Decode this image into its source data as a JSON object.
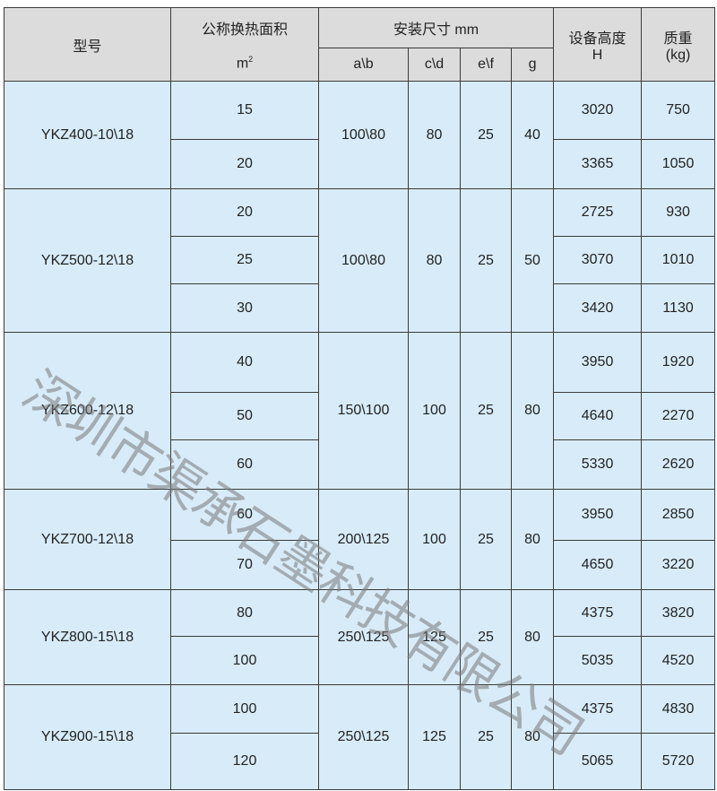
{
  "header": {
    "model": "型号",
    "area": "公称换热面积",
    "area_unit": "m",
    "area_unit_sup": "2",
    "install": "安装尺寸 mm",
    "ab": "a\\b",
    "cd": "c\\d",
    "ef": "e\\f",
    "g": "g",
    "height": "设备高度",
    "height_unit": "H",
    "weight": "质重",
    "weight_unit": "(kg)"
  },
  "groups": [
    {
      "model": "YKZ400-10\\18",
      "ab": "100\\80",
      "cd": "80",
      "ef": "25",
      "g": "40",
      "rows": [
        {
          "area": "15",
          "h": "3020",
          "w": "750"
        },
        {
          "area": "20",
          "h": "3365",
          "w": "1050"
        }
      ]
    },
    {
      "model": "YKZ500-12\\18",
      "ab": "100\\80",
      "cd": "80",
      "ef": "25",
      "g": "50",
      "rows": [
        {
          "area": "20",
          "h": "2725",
          "w": "930"
        },
        {
          "area": "25",
          "h": "3070",
          "w": "1010"
        },
        {
          "area": "30",
          "h": "3420",
          "w": "1130"
        }
      ]
    },
    {
      "model": "YKZ600-12\\18",
      "ab": "150\\100",
      "cd": "100",
      "ef": "25",
      "g": "80",
      "rows": [
        {
          "area": "40",
          "h": "3950",
          "w": "1920"
        },
        {
          "area": "50",
          "h": "4640",
          "w": "2270"
        },
        {
          "area": "60",
          "h": "5330",
          "w": "2620"
        }
      ]
    },
    {
      "model": "YKZ700-12\\18",
      "ab": "200\\125",
      "cd": "100",
      "ef": "25",
      "g": "80",
      "rows": [
        {
          "area": "60",
          "h": "3950",
          "w": "2850"
        },
        {
          "area": "70",
          "h": "4650",
          "w": "3220"
        }
      ]
    },
    {
      "model": "YKZ800-15\\18",
      "ab": "250\\125",
      "cd": "125",
      "ef": "25",
      "g": "80",
      "rows": [
        {
          "area": "80",
          "h": "4375",
          "w": "3820"
        },
        {
          "area": "100",
          "h": "5035",
          "w": "4520"
        }
      ]
    },
    {
      "model": "YKZ900-15\\18",
      "ab": "250\\125",
      "cd": "125",
      "ef": "25",
      "g": "80",
      "rows": [
        {
          "area": "100",
          "h": "4375",
          "w": "4830"
        },
        {
          "area": "120",
          "h": "5065",
          "w": "5720"
        }
      ]
    }
  ],
  "watermark": "深圳市渠承石墨科技有限公司"
}
